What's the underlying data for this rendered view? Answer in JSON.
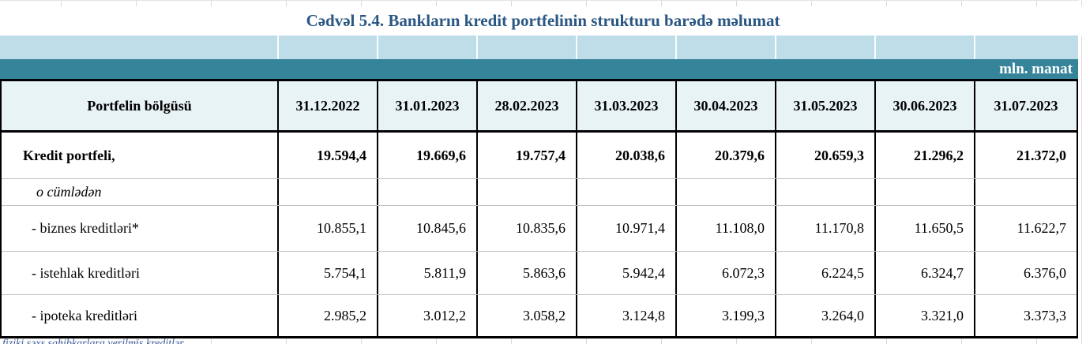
{
  "title": "Cədvəl 5.4. Bankların kredit portfelinin strukturu barədə məlumat",
  "unit_label": "mln. manat",
  "table": {
    "col_header": "Portfelin bölgüsü",
    "dates": [
      "31.12.2022",
      "31.01.2023",
      "28.02.2023",
      "31.03.2023",
      "30.04.2023",
      "31.05.2023",
      "30.06.2023",
      "31.07.2023"
    ],
    "rows": [
      {
        "label": "Kredit portfeli,",
        "style": "bold",
        "values": [
          "19.594,4",
          "19.669,6",
          "19.757,4",
          "20.038,6",
          "20.379,6",
          "20.659,3",
          "21.296,2",
          "21.372,0"
        ]
      },
      {
        "label": "o cümlədən",
        "style": "italic",
        "values": [
          "",
          "",
          "",
          "",
          "",
          "",
          "",
          ""
        ]
      },
      {
        "label": "- biznes kreditləri*",
        "style": "normal",
        "values": [
          "10.855,1",
          "10.845,6",
          "10.835,6",
          "10.971,4",
          "11.108,0",
          "11.170,8",
          "11.650,5",
          "11.622,7"
        ]
      },
      {
        "label": "- istehlak kreditləri",
        "style": "normal",
        "values": [
          "5.754,1",
          "5.811,9",
          "5.863,6",
          "5.942,4",
          "6.072,3",
          "6.224,5",
          "6.324,7",
          "6.376,0"
        ]
      },
      {
        "label": "- ipoteka kreditləri",
        "style": "normal",
        "values": [
          "2.985,2",
          "3.012,2",
          "3.058,2",
          "3.124,8",
          "3.199,3",
          "3.264,0",
          "3.321,0",
          "3.373,3"
        ]
      }
    ]
  },
  "footnote": "fiziki şəxs sahibkarlara verilmiş kreditlər",
  "colors": {
    "title_text": "#2a5783",
    "band_light": "#bedde8",
    "band_teal": "#35849a",
    "header_row_bg": "#e8f3f6",
    "border_black": "#000000",
    "row_separator": "#bfbfbf",
    "footnote_text": "#3d5a97"
  }
}
